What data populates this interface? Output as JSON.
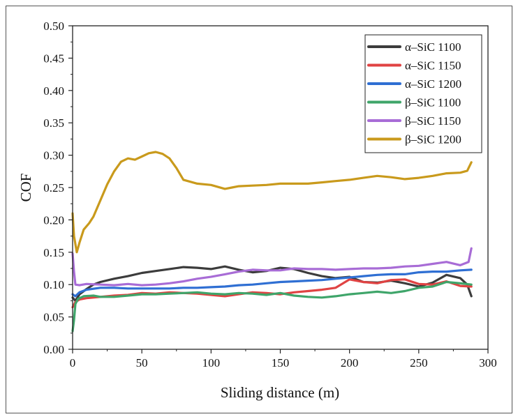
{
  "chart_data": {
    "type": "line",
    "title": "",
    "xlabel": "Sliding distance (m)",
    "ylabel": "COF",
    "xlim": [
      0,
      300
    ],
    "ylim": [
      0.0,
      0.5
    ],
    "xticks": [
      0,
      50,
      100,
      150,
      200,
      250,
      300
    ],
    "yticks": [
      0.0,
      0.05,
      0.1,
      0.15,
      0.2,
      0.25,
      0.3,
      0.35,
      0.4,
      0.45,
      0.5
    ],
    "xtick_labels": [
      "0",
      "50",
      "100",
      "150",
      "200",
      "250",
      "300"
    ],
    "ytick_labels": [
      "0.00",
      "0.05",
      "0.10",
      "0.15",
      "0.20",
      "0.25",
      "0.30",
      "0.35",
      "0.40",
      "0.45",
      "0.50"
    ],
    "legend_position": "top-right",
    "grid": false,
    "series": [
      {
        "name": "α–SiC 1100",
        "color": "#3c3c3c",
        "x": [
          0,
          2,
          5,
          10,
          15,
          20,
          30,
          40,
          50,
          60,
          70,
          80,
          90,
          100,
          110,
          120,
          130,
          140,
          150,
          160,
          170,
          180,
          190,
          200,
          210,
          220,
          230,
          240,
          250,
          260,
          270,
          280,
          285,
          288
        ],
        "y": [
          0.08,
          0.075,
          0.085,
          0.093,
          0.1,
          0.104,
          0.109,
          0.113,
          0.118,
          0.121,
          0.124,
          0.127,
          0.126,
          0.124,
          0.128,
          0.123,
          0.119,
          0.121,
          0.126,
          0.124,
          0.118,
          0.113,
          0.11,
          0.112,
          0.104,
          0.103,
          0.106,
          0.102,
          0.097,
          0.103,
          0.115,
          0.11,
          0.1,
          0.082
        ]
      },
      {
        "name": "α–SiC 1150",
        "color": "#e04343",
        "x": [
          0,
          2,
          5,
          10,
          20,
          30,
          40,
          50,
          60,
          70,
          80,
          90,
          100,
          110,
          120,
          130,
          140,
          150,
          160,
          170,
          180,
          190,
          200,
          210,
          220,
          230,
          240,
          250,
          260,
          270,
          280,
          288
        ],
        "y": [
          0.065,
          0.073,
          0.077,
          0.079,
          0.081,
          0.083,
          0.084,
          0.087,
          0.086,
          0.088,
          0.087,
          0.086,
          0.084,
          0.082,
          0.085,
          0.088,
          0.087,
          0.085,
          0.088,
          0.09,
          0.092,
          0.095,
          0.108,
          0.104,
          0.102,
          0.107,
          0.108,
          0.101,
          0.1,
          0.105,
          0.098,
          0.097
        ]
      },
      {
        "name": "α–SiC 1200",
        "color": "#2f6fd3",
        "x": [
          0,
          2,
          5,
          10,
          20,
          30,
          40,
          50,
          60,
          70,
          80,
          90,
          100,
          110,
          120,
          130,
          140,
          150,
          160,
          170,
          180,
          190,
          200,
          210,
          220,
          230,
          240,
          250,
          260,
          270,
          280,
          288
        ],
        "y": [
          0.085,
          0.082,
          0.088,
          0.092,
          0.095,
          0.095,
          0.094,
          0.094,
          0.094,
          0.094,
          0.095,
          0.095,
          0.096,
          0.097,
          0.099,
          0.1,
          0.102,
          0.104,
          0.105,
          0.106,
          0.107,
          0.109,
          0.111,
          0.113,
          0.115,
          0.116,
          0.116,
          0.119,
          0.12,
          0.12,
          0.122,
          0.123
        ]
      },
      {
        "name": "β–SiC 1100",
        "color": "#3fa56a",
        "x": [
          0,
          1,
          2,
          4,
          8,
          15,
          20,
          30,
          40,
          50,
          60,
          70,
          80,
          90,
          100,
          110,
          120,
          130,
          140,
          150,
          160,
          170,
          180,
          190,
          200,
          210,
          220,
          230,
          240,
          250,
          260,
          270,
          280,
          288
        ],
        "y": [
          0.028,
          0.045,
          0.07,
          0.078,
          0.082,
          0.083,
          0.081,
          0.081,
          0.083,
          0.085,
          0.085,
          0.086,
          0.087,
          0.088,
          0.086,
          0.085,
          0.087,
          0.086,
          0.084,
          0.087,
          0.083,
          0.081,
          0.08,
          0.082,
          0.085,
          0.087,
          0.089,
          0.087,
          0.09,
          0.095,
          0.097,
          0.104,
          0.102,
          0.1
        ]
      },
      {
        "name": "β–SiC 1150",
        "color": "#a86cd6",
        "x": [
          0,
          1,
          2,
          5,
          10,
          20,
          30,
          40,
          50,
          60,
          70,
          80,
          90,
          100,
          110,
          120,
          130,
          140,
          150,
          160,
          170,
          180,
          190,
          200,
          210,
          220,
          230,
          240,
          250,
          260,
          270,
          280,
          286,
          288
        ],
        "y": [
          0.148,
          0.12,
          0.1,
          0.099,
          0.101,
          0.1,
          0.099,
          0.101,
          0.099,
          0.1,
          0.102,
          0.105,
          0.109,
          0.112,
          0.116,
          0.12,
          0.123,
          0.122,
          0.122,
          0.125,
          0.124,
          0.124,
          0.123,
          0.124,
          0.125,
          0.125,
          0.126,
          0.128,
          0.129,
          0.132,
          0.135,
          0.13,
          0.135,
          0.156
        ]
      },
      {
        "name": "β–SiC 1200",
        "color": "#c99a1c",
        "x": [
          0,
          1,
          3,
          5,
          8,
          12,
          15,
          20,
          25,
          30,
          35,
          40,
          45,
          50,
          55,
          60,
          65,
          70,
          75,
          80,
          90,
          100,
          110,
          115,
          120,
          130,
          140,
          150,
          160,
          170,
          180,
          190,
          200,
          210,
          220,
          230,
          240,
          250,
          260,
          270,
          280,
          285,
          288
        ],
        "y": [
          0.21,
          0.175,
          0.15,
          0.165,
          0.185,
          0.195,
          0.205,
          0.23,
          0.255,
          0.275,
          0.29,
          0.295,
          0.293,
          0.298,
          0.303,
          0.305,
          0.302,
          0.295,
          0.28,
          0.262,
          0.256,
          0.254,
          0.248,
          0.25,
          0.252,
          0.253,
          0.254,
          0.256,
          0.256,
          0.256,
          0.258,
          0.26,
          0.262,
          0.265,
          0.268,
          0.266,
          0.263,
          0.265,
          0.268,
          0.272,
          0.273,
          0.276,
          0.289
        ]
      }
    ]
  }
}
